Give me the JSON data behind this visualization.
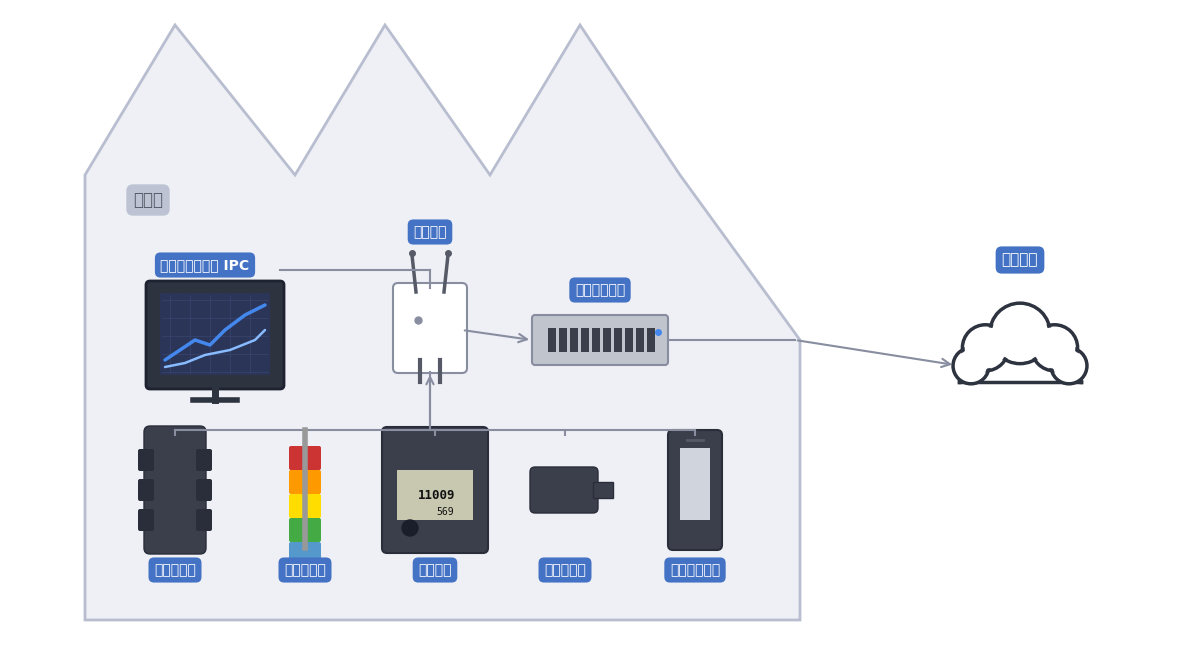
{
  "bg_color": "#ffffff",
  "factory_outline_color": "#b8bed0",
  "factory_fill_color": "#eef0f5",
  "label_bg_blue": "#4472c4",
  "label_bg_gray": "#b8bed0",
  "label_text_white": "#ffffff",
  "label_text_gray": "#555a66",
  "icon_dark": "#3a3f4b",
  "icon_mid": "#6b7280",
  "arrow_color": "#888ea0",
  "factory_label": "工場内",
  "ipc_label": "アドバンテック IPC",
  "router_label": "ルーター",
  "gateway_label": "ゲートウェイ",
  "cloud_label": "クラウド",
  "sensor_labels": [
    "オイル流量",
    "パトライト",
    "カウンタ",
    "近接センサ",
    "作機員用端末"
  ]
}
